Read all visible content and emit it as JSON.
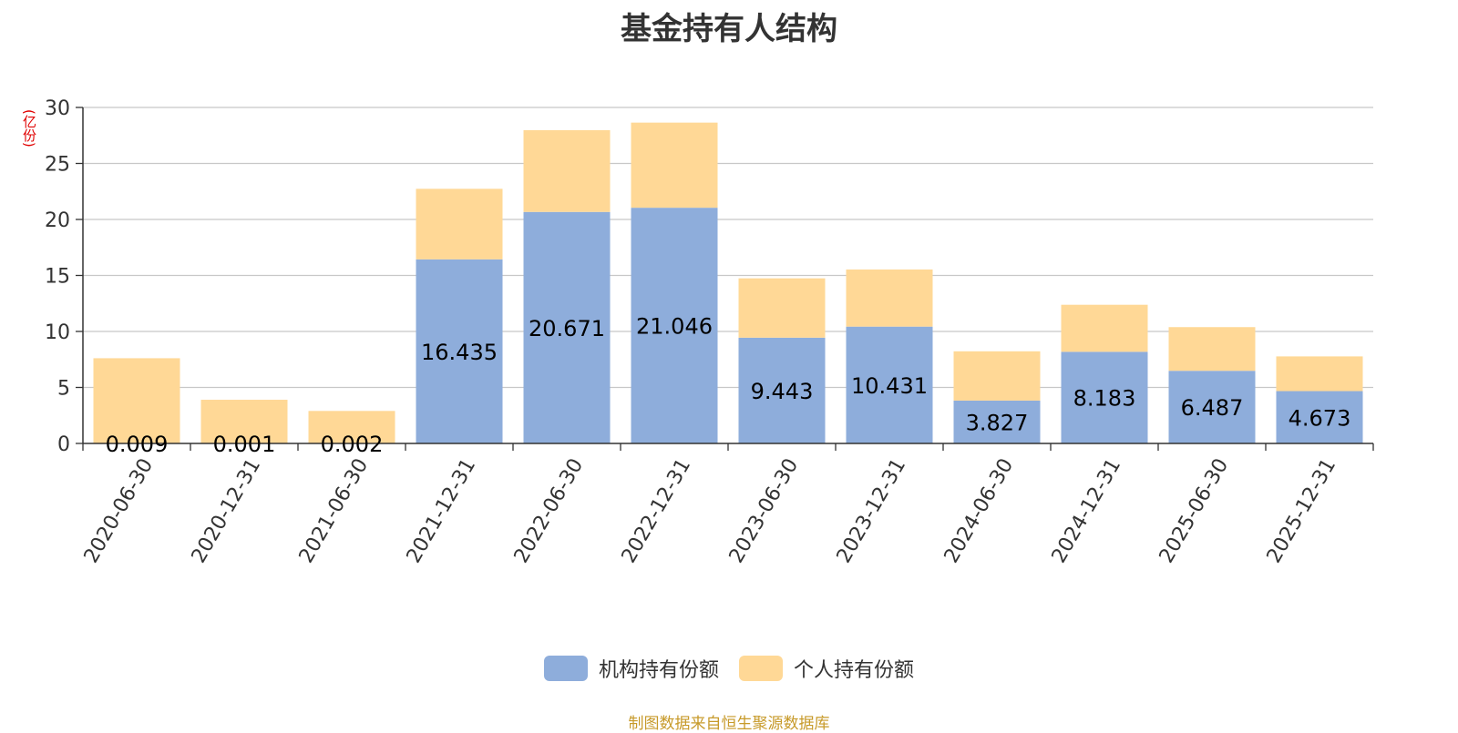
{
  "chart_data": {
    "type": "bar",
    "stacked": true,
    "title": "基金持有人结构",
    "ylabel": "(亿份)",
    "ylim": [
      0,
      30
    ],
    "yticks": [
      0,
      5,
      10,
      15,
      20,
      25,
      30
    ],
    "grid": true,
    "legend_position": "bottom",
    "categories": [
      "2020-06-30",
      "2020-12-31",
      "2021-06-30",
      "2021-12-31",
      "2022-06-30",
      "2022-12-31",
      "2023-06-30",
      "2023-12-31",
      "2024-06-30",
      "2024-12-31",
      "2025-06-30",
      "2025-12-31"
    ],
    "series": [
      {
        "name": "机构持有份额",
        "color": "#8eaddb",
        "values": [
          0.009,
          0.001,
          0.002,
          16.435,
          20.671,
          21.046,
          9.443,
          10.431,
          3.827,
          8.183,
          6.487,
          4.673
        ],
        "labels": [
          "0.009",
          "0.001",
          "0.002",
          "16.435",
          "20.671",
          "21.046",
          "9.443",
          "10.431",
          "3.827",
          "8.183",
          "6.487",
          "4.673"
        ]
      },
      {
        "name": "个人持有份额",
        "color": "#ffd896",
        "values": [
          7.6,
          3.9,
          2.9,
          6.3,
          7.3,
          7.6,
          5.3,
          5.1,
          4.4,
          4.2,
          3.9,
          3.1
        ]
      }
    ]
  },
  "footer": {
    "source": "制图数据来自恒生聚源数据库"
  }
}
